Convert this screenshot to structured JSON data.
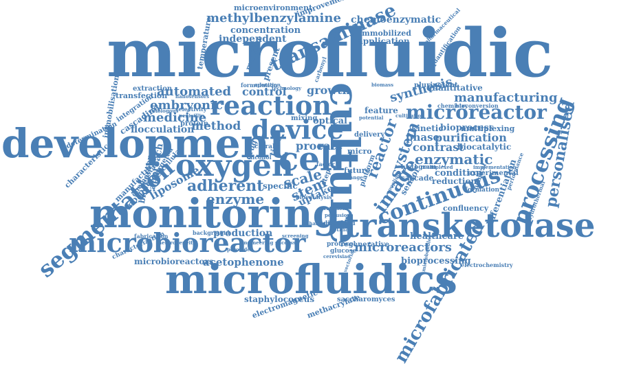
{
  "colors": {
    "word": "#4a7fb5",
    "background": "#ffffff"
  },
  "words": {
    "microfluidic": "microfluidic",
    "development": "development",
    "monitoring": "monitoring",
    "microfluidics": "microfluidics",
    "transketolase": "transketolase",
    "microbioreactor": "microbioreactor",
    "culture": "culture",
    "oxygen": "oxygen",
    "cell": "cell",
    "reaction": "reaction",
    "device": "device",
    "microreactor": "microreactor",
    "segmentation": "segmentation",
    "processing": "processing",
    "continuous": "continuous",
    "microfabricated": "microfabricated",
    "personalised": "personalised",
    "transaminase": "transaminase",
    "methylbenzylamine": "methylbenzylamine",
    "microenvironment": "microenvironment",
    "improvement": "improvement",
    "chemoenzymatic": "chemoenzymatic",
    "concentration": "concentration",
    "independent": "independent",
    "immobilized": "immobilized",
    "application": "application",
    "temperature": "temperature",
    "machine": "machine",
    "automated": "automated",
    "control": "control",
    "growth": "growth",
    "synthesis": "synthesis",
    "quantitative": "quantitative",
    "manufacturing": "manufacturing",
    "embryonic": "embryonic",
    "medicine": "medicine",
    "method": "method",
    "flocculation": "flocculation",
    "transfection": "transfection",
    "extraction": "extraction",
    "immobilisation": "immobilisation",
    "determination": "determination",
    "characteristic": "characteristic",
    "integration": "integration",
    "cascading": "cascading",
    "kinetic": "kinetic",
    "bioprocess": "bioprocess",
    "multiplexing": "multiplexing",
    "phase": "phase",
    "purification": "purification",
    "enzymatic": "enzymatic",
    "contrast": "contrast",
    "biocatalytic": "biocatalytic",
    "feature": "feature",
    "optical": "optical",
    "system": "system",
    "reactor": "reactor",
    "image": "image",
    "scale": "scale",
    "rate": "rate",
    "stem": "stem",
    "uptake": "uptake",
    "enzyme": "enzyme",
    "adherent": "adherent",
    "liposome": "liposome",
    "approach": "approach",
    "bioreactor": "bioreactor",
    "manufacture": "manufacture",
    "morphology": "morphology",
    "production": "production",
    "microreactors": "microreactors",
    "microbioreactors": "microbioreactors",
    "acetophenone": "acetophenone",
    "bioprocessing": "bioprocessing",
    "regenerative": "regenerative",
    "healthcare": "healthcare",
    "confluency": "confluency",
    "condition": "condition",
    "reduction": "reduction",
    "cascade": "cascade",
    "differentiation": "differentiation",
    "staphylococcus": "staphylococcus",
    "electromagnetic": "electromagnetic",
    "methacrylate": "methacrylate",
    "saccharomyces": "saccharomyces",
    "experimental": "experimental",
    "electrochemistry": "electrochemistry",
    "pluripotent": "pluripotent",
    "histogram": "histogram",
    "future": "future",
    "micro": "micro",
    "platform": "platform",
    "sensor": "sensor",
    "mixing": "mixing",
    "delivery": "delivery",
    "proc": "proc",
    "protein": "protein",
    "dissolved": "dissolved",
    "protocol": "protocol",
    "glucose": "glucose",
    "specific": "specific",
    "targeted": "targeted",
    "cellular": "cellular",
    "chemostat": "chemostat",
    "characterization": "characterization",
    "background": "background",
    "fabrication": "fabrication",
    "biocatalysis": "biocatalysis",
    "formulation": "formulation",
    "selectivity": "selectivity",
    "penicillin": "penicillin",
    "autologous": "autologous",
    "nanosensors": "nanosensors",
    "pharmaceutical": "pharmaceutical",
    "quantification": "quantification",
    "bioconversion": "bioconversion",
    "chemistry": "chemistry",
    "formation": "formation",
    "chemical": "chemical",
    "performance": "performance",
    "hydrothermal": "hydrothermal",
    "implementation": "implementation",
    "potential": "potential",
    "present": "present",
    "carbonyl": "carbonyl",
    "operation": "operation",
    "technology": "technology",
    "drug": "drug",
    "chiral": "chiral",
    "alcohol": "alcohol",
    "time": "time",
    "range": "range",
    "step": "step",
    "factor": "factor",
    "vectorial": "vectorial",
    "retinal": "retinal",
    "screening": "screening",
    "success": "success",
    "coupling": "coupling",
    "correction": "correction",
    "perfusion": "perfusion",
    "challenge": "challenge",
    "cerevisiae": "cerevisiae",
    "microbubble": "microbubble",
    "multiplexed": "multiplexed",
    "cultivation": "cultivation",
    "biomass": "biomass",
    "heterogeneity": "heterogeneity",
    "engineering": "engineering",
    "peroxide": "peroxide"
  }
}
